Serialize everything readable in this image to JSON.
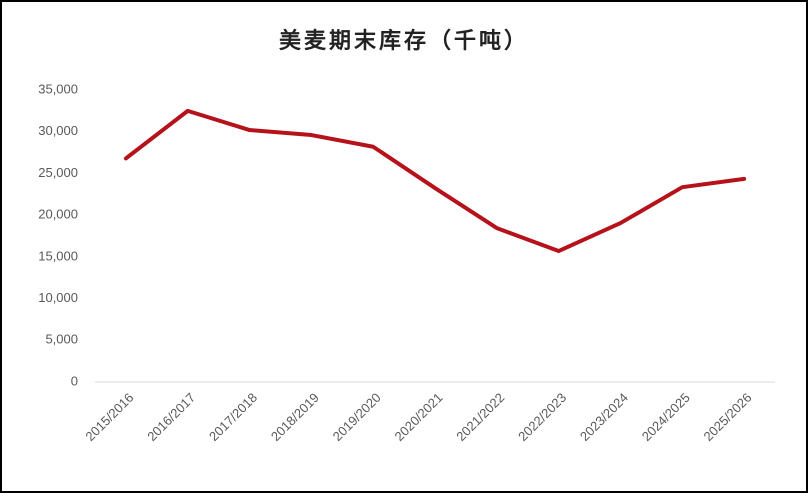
{
  "chart_data": {
    "type": "line",
    "title": "美麦期末库存（千吨）",
    "categories": [
      "2015/2016",
      "2016/2017",
      "2017/2018",
      "2018/2019",
      "2019/2020",
      "2020/2021",
      "2021/2022",
      "2022/2023",
      "2023/2024",
      "2024/2025",
      "2025/2026"
    ],
    "series": [
      {
        "name": "美麦期末库存",
        "color": "#b5121b",
        "values": [
          26800,
          32500,
          30200,
          29600,
          28200,
          23250,
          18450,
          15700,
          19050,
          23350,
          24350
        ]
      }
    ],
    "ylim": [
      0,
      35000
    ],
    "yticks": [
      0,
      {
        "value": 5000,
        "label": "5,000"
      },
      {
        "value": 10000,
        "label": "10,000"
      },
      {
        "value": 15000,
        "label": "15,000"
      },
      {
        "value": 20000,
        "label": "20,000"
      },
      {
        "value": 25000,
        "label": "25,000"
      },
      {
        "value": 30000,
        "label": "30,000"
      },
      {
        "value": 35000,
        "label": "35,000"
      }
    ],
    "grid": false,
    "legend": false
  }
}
